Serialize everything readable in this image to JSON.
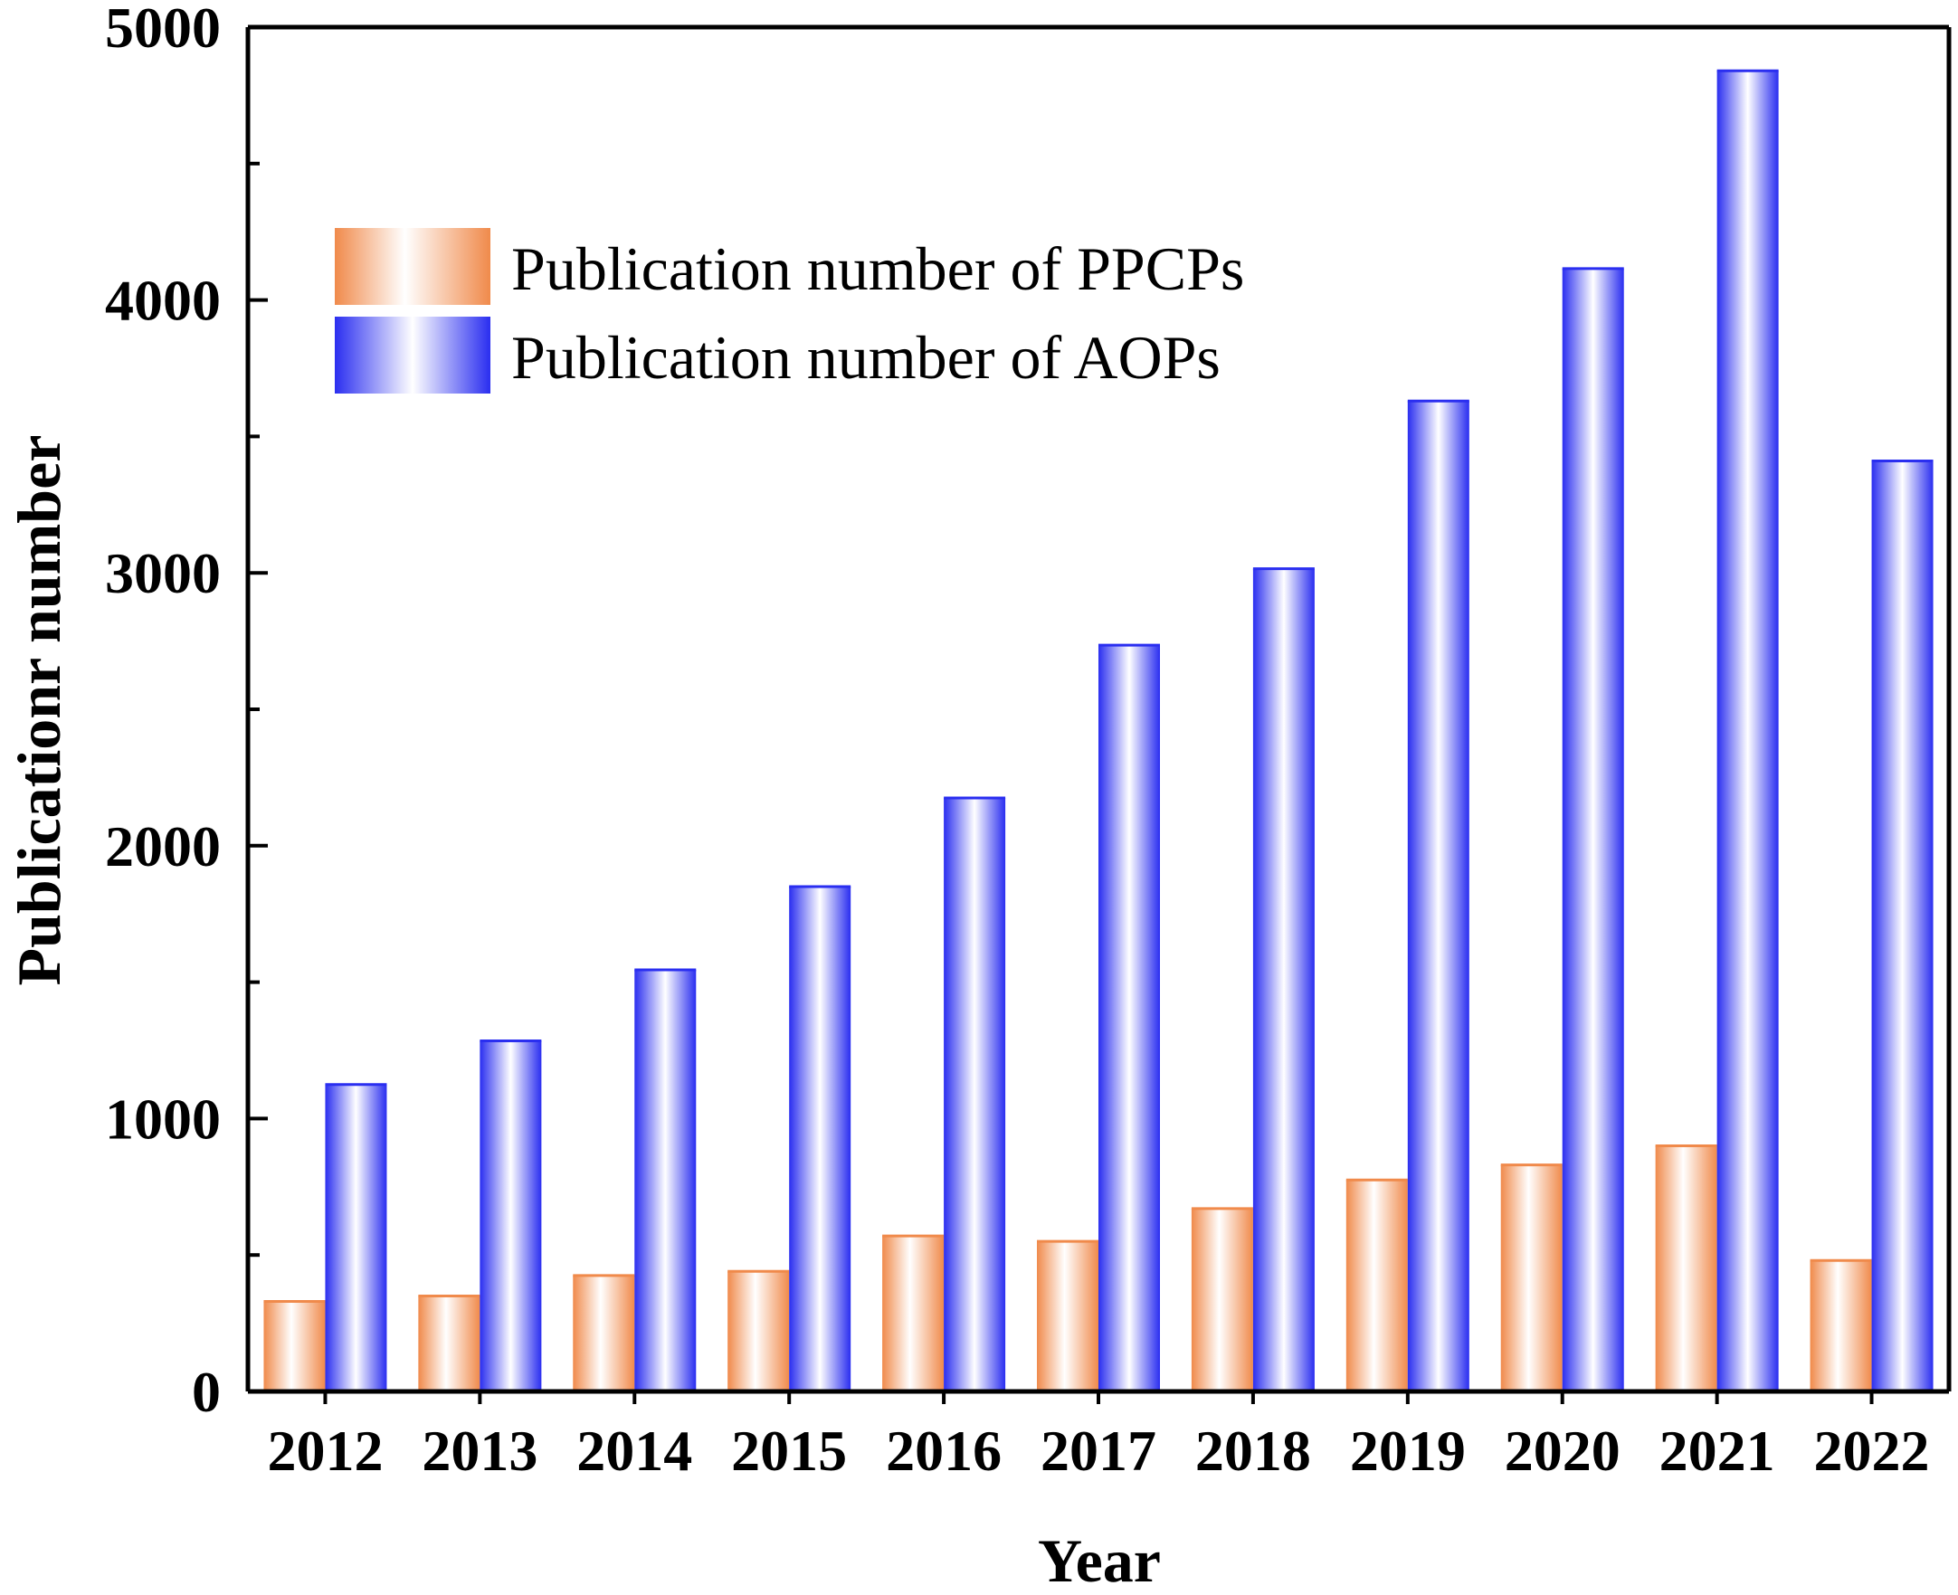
{
  "chart_data": {
    "type": "bar",
    "title": "",
    "xlabel": "Year",
    "ylabel": "Publicationr number",
    "ylim": [
      0,
      5000
    ],
    "yticks": [
      0,
      1000,
      2000,
      3000,
      4000,
      5000
    ],
    "categories": [
      "2012",
      "2013",
      "2014",
      "2015",
      "2016",
      "2017",
      "2018",
      "2019",
      "2020",
      "2021",
      "2022"
    ],
    "series": [
      {
        "name": "Publication number of PPCPs",
        "color": "#f08a4b",
        "values": [
          330,
          350,
          425,
          440,
          570,
          550,
          670,
          775,
          830,
          900,
          480
        ]
      },
      {
        "name": "Publication number of AOPs",
        "color": "#2a2ef0",
        "values": [
          1125,
          1285,
          1545,
          1850,
          2175,
          2735,
          3015,
          3630,
          4115,
          4840,
          3410
        ]
      }
    ],
    "legend": "top-left",
    "grid": false
  }
}
